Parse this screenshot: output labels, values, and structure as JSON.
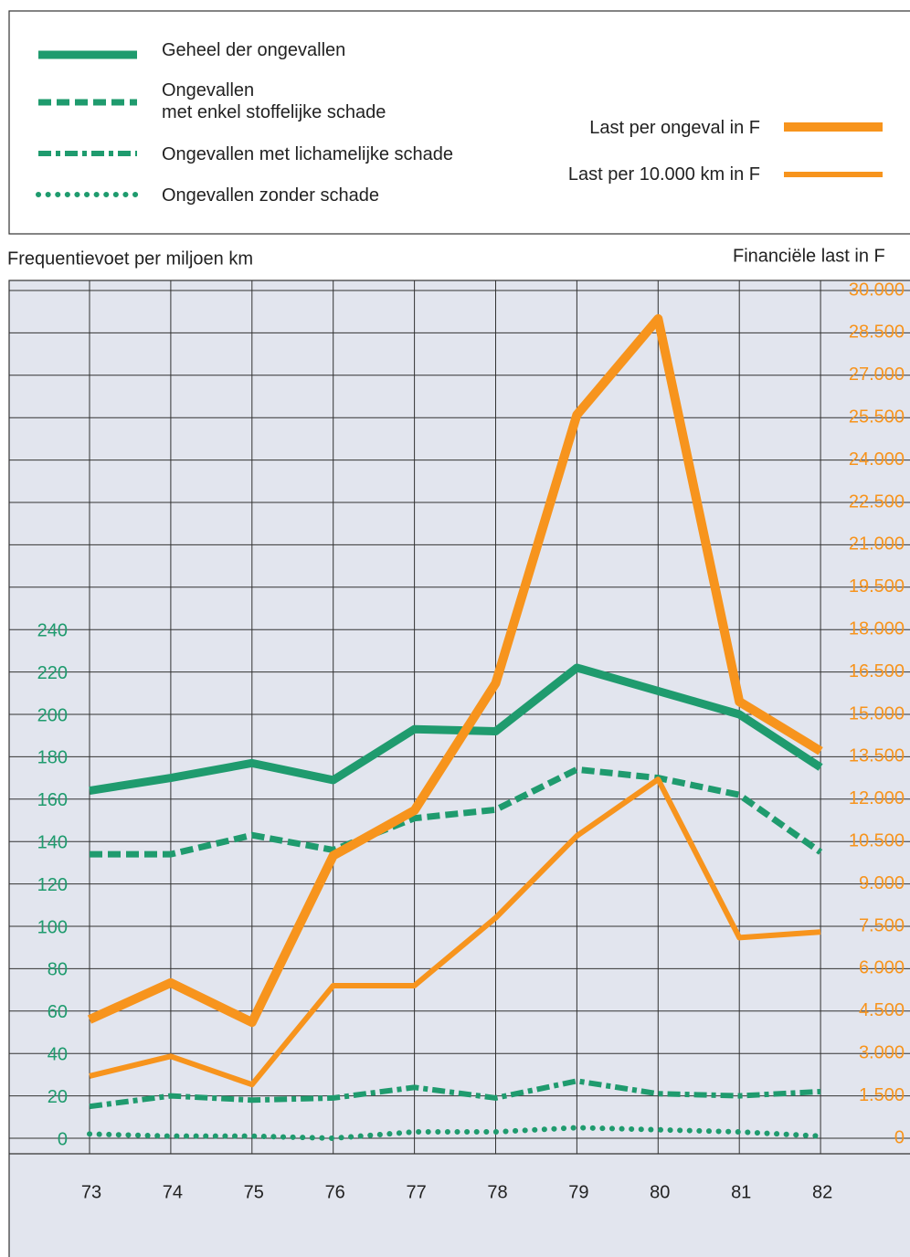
{
  "chart_data": {
    "type": "line",
    "ylabel": "Frequentievoet per miljoen km",
    "y2label": "Financiële last in F",
    "categories": [
      "73",
      "74",
      "75",
      "76",
      "77",
      "78",
      "79",
      "80",
      "81",
      "82"
    ],
    "ylim": [
      0,
      400
    ],
    "yticks": [
      0,
      20,
      40,
      60,
      80,
      100,
      120,
      140,
      160,
      180,
      200,
      220,
      240
    ],
    "y2lim": [
      0,
      30000
    ],
    "y2ticks": [
      0,
      {
        "value": 1500,
        "label": "1.500"
      },
      {
        "value": 3000,
        "label": "3.000"
      },
      {
        "value": 4500,
        "label": "4.500"
      },
      {
        "value": 6000,
        "label": "6.000"
      },
      {
        "value": 7500,
        "label": "7.500"
      },
      {
        "value": 9000,
        "label": "9.000"
      },
      {
        "value": 10500,
        "label": "10.500"
      },
      {
        "value": 12000,
        "label": "12.000"
      },
      {
        "value": 13500,
        "label": "13.500"
      },
      {
        "value": 15000,
        "label": "15.000"
      },
      {
        "value": 16500,
        "label": "16.500"
      },
      {
        "value": 18000,
        "label": "18.000"
      },
      {
        "value": 19500,
        "label": "19.500"
      },
      {
        "value": 21000,
        "label": "21.000"
      },
      {
        "value": 22500,
        "label": "22.500"
      },
      {
        "value": 24000,
        "label": "24.000"
      },
      {
        "value": 25500,
        "label": "25.500"
      },
      {
        "value": 27000,
        "label": "27.000"
      },
      {
        "value": 28500,
        "label": "28.500"
      },
      {
        "value": 30000,
        "label": "30.000"
      }
    ],
    "grid": true,
    "series": [
      {
        "name": "Geheel der ongevallen",
        "color": "#1f9b6e",
        "style": "solid",
        "values": [
          164,
          170,
          177,
          169,
          193,
          192,
          222,
          211,
          200,
          175
        ]
      },
      {
        "name": "Ongevallen\nmet enkel stoffelijke schade",
        "color": "#1f9b6e",
        "style": "dashed",
        "values": [
          134,
          134,
          143,
          136,
          151,
          155,
          174,
          170,
          162,
          135
        ]
      },
      {
        "name": "Ongevallen met lichamelijke schade",
        "color": "#1f9b6e",
        "style": "dashdot",
        "values": [
          15,
          20,
          18,
          19,
          24,
          19,
          27,
          21,
          20,
          22
        ]
      },
      {
        "name": "Ongevallen zonder schade",
        "color": "#1f9b6e",
        "style": "dotted",
        "values": [
          2,
          1,
          1,
          0,
          3,
          3,
          5,
          4,
          3,
          1
        ]
      },
      {
        "name": "Last per ongeval in F",
        "color": "#f7941d",
        "style": "solid",
        "axis": "y2",
        "values": [
          4200,
          5500,
          4100,
          10000,
          11600,
          16100,
          25600,
          29000,
          15450,
          13700
        ]
      },
      {
        "name": "Last per 10.000 km in F",
        "color": "#f7941d",
        "style": "solid",
        "axis": "y2",
        "values": [
          2200,
          2900,
          1900,
          5400,
          5400,
          7800,
          10700,
          12700,
          7100,
          7300
        ]
      }
    ]
  }
}
